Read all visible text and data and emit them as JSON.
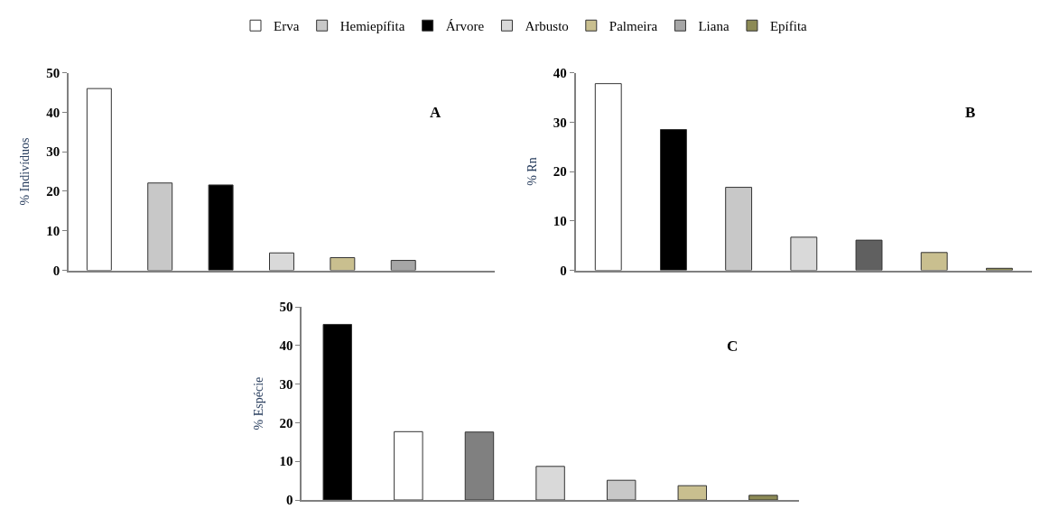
{
  "chart_data": [
    {
      "type": "bar",
      "ylabel": "% Indivíduos",
      "annotations": [
        "A"
      ],
      "categories": [
        null,
        null,
        null,
        null,
        null,
        null,
        null
      ],
      "ylim": [
        0,
        50
      ],
      "yticks": [
        0,
        10,
        20,
        30,
        40,
        50
      ],
      "tick_labels": "y",
      "legend": "top",
      "series": [
        {
          "name": "Erva",
          "color": "#ffffff",
          "values": [
            46,
            null,
            null,
            null,
            null,
            null,
            null
          ]
        },
        {
          "name": "Hemiepífita",
          "color": "#c8c8c8",
          "values": [
            null,
            22.1,
            null,
            null,
            null,
            null,
            null
          ]
        },
        {
          "name": "Árvore",
          "color": "#000000",
          "values": [
            null,
            null,
            21.6,
            null,
            null,
            null,
            null
          ]
        },
        {
          "name": "Arbusto",
          "color": "#d9d9d9",
          "values": [
            null,
            null,
            null,
            4.4,
            null,
            null,
            null
          ]
        },
        {
          "name": "Palmeira",
          "color": "#c9bf8f",
          "values": [
            null,
            null,
            null,
            null,
            3.2,
            null,
            null
          ]
        },
        {
          "name": "Liana",
          "color": "#a6a6a6",
          "values": [
            null,
            null,
            null,
            null,
            null,
            2.5,
            null
          ]
        },
        {
          "name": "Epífita",
          "color": "#8c8a55",
          "values": [
            null,
            null,
            null,
            null,
            null,
            null,
            null
          ]
        }
      ]
    },
    {
      "type": "bar",
      "ylabel": "% Rn",
      "annotations": [
        "B"
      ],
      "categories": [
        null,
        null,
        null,
        null,
        null,
        null,
        null
      ],
      "ylim": [
        0,
        40
      ],
      "yticks": [
        0,
        10,
        20,
        30,
        40
      ],
      "tick_labels": "y",
      "values": [
        37.8,
        28.5,
        16.8,
        6.7,
        6.1,
        3.6,
        0.4
      ],
      "colors": [
        "#ffffff",
        "#000000",
        "#c8c8c8",
        "#d9d9d9",
        "#606060",
        "#c9bf8f",
        "#8c8a55"
      ]
    },
    {
      "type": "bar",
      "ylabel": "% Espécie",
      "annotations": [
        "C"
      ],
      "categories": [
        null,
        null,
        null,
        null,
        null,
        null,
        null
      ],
      "ylim": [
        0,
        50
      ],
      "yticks": [
        0,
        10,
        20,
        30,
        40,
        50
      ],
      "tick_labels": "y",
      "values": [
        45.5,
        17.7,
        17.6,
        8.7,
        5.1,
        3.7,
        1.2
      ],
      "colors": [
        "#000000",
        "#ffffff",
        "#808080",
        "#d9d9d9",
        "#c8c8c8",
        "#c9bf8f",
        "#8c8a55"
      ]
    }
  ]
}
